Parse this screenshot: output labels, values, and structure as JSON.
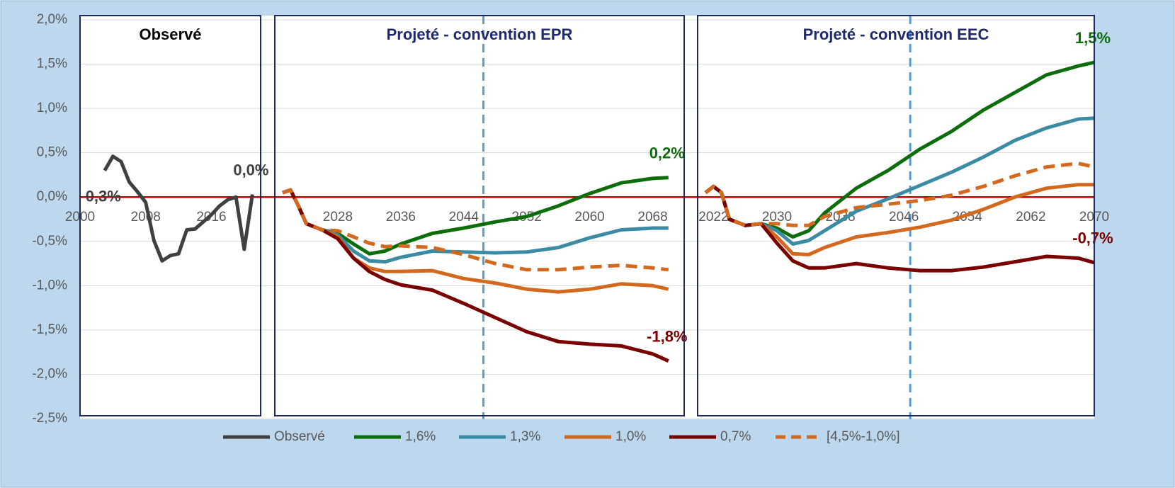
{
  "chart_data": [
    {
      "type": "line",
      "title": "Observé",
      "ylim": [
        -2.5,
        2.0
      ],
      "yticks": [
        {
          "value": 2.0,
          "label": "2,0%"
        },
        {
          "value": 1.5,
          "label": "1,5%"
        },
        {
          "value": 1.0,
          "label": "1,0%"
        },
        {
          "value": 0.5,
          "label": "0,5%"
        },
        {
          "value": 0.0,
          "label": "0,0%"
        },
        {
          "value": -0.5,
          "label": "-0,5%"
        },
        {
          "value": -1.0,
          "label": "-1,0%"
        },
        {
          "value": -1.5,
          "label": "-1,5%"
        },
        {
          "value": -2.0,
          "label": "-2,0%"
        },
        {
          "value": -2.5,
          "label": "-2,5%"
        }
      ],
      "grid": true,
      "zero_line": 0,
      "xlim": [
        2000,
        2022
      ],
      "xticks": [
        2000,
        2008,
        2016
      ],
      "x": [
        2003,
        2004,
        2005,
        2006,
        2007,
        2008,
        2009,
        2010,
        2011,
        2012,
        2013,
        2014,
        2015,
        2016,
        2017,
        2018,
        2019,
        2020,
        2021
      ],
      "series": [
        {
          "name": "Observé",
          "color": "#404040",
          "start_label": "0,3%",
          "end_label": "0,0%",
          "values": [
            0.3,
            0.46,
            0.4,
            0.17,
            0.06,
            -0.06,
            -0.49,
            -0.72,
            -0.66,
            -0.64,
            -0.37,
            -0.36,
            -0.28,
            -0.2,
            -0.1,
            -0.03,
            0.0,
            -0.59,
            0.03
          ]
        }
      ]
    },
    {
      "type": "line",
      "title": "Projeté - convention EPR",
      "ylim": [
        -2.5,
        2.0
      ],
      "xlim": [
        2020,
        2072
      ],
      "xticks": [
        2028,
        2036,
        2044,
        2052,
        2060,
        2068
      ],
      "vline": 2046.5,
      "x": [
        2021,
        2022,
        2023,
        2024,
        2026,
        2028,
        2030,
        2032,
        2034,
        2036,
        2040,
        2044,
        2048,
        2052,
        2056,
        2060,
        2064,
        2068,
        2070
      ],
      "series": [
        {
          "name": "1,6%",
          "color": "#0b6e0b",
          "end_label": "0,2%",
          "values": [
            0.05,
            0.08,
            -0.1,
            -0.3,
            -0.37,
            -0.41,
            -0.53,
            -0.64,
            -0.61,
            -0.53,
            -0.41,
            -0.35,
            -0.28,
            -0.22,
            -0.1,
            0.04,
            0.16,
            0.21,
            0.22
          ]
        },
        {
          "name": "1,3%",
          "color": "#3a8ba3",
          "values": [
            0.05,
            0.08,
            -0.1,
            -0.3,
            -0.37,
            -0.43,
            -0.61,
            -0.72,
            -0.73,
            -0.68,
            -0.61,
            -0.62,
            -0.63,
            -0.62,
            -0.57,
            -0.46,
            -0.37,
            -0.35,
            -0.35
          ]
        },
        {
          "name": "1,0%",
          "color": "#d2691e",
          "values": [
            0.05,
            0.08,
            -0.1,
            -0.3,
            -0.37,
            -0.45,
            -0.69,
            -0.8,
            -0.84,
            -0.84,
            -0.83,
            -0.92,
            -0.97,
            -1.04,
            -1.07,
            -1.04,
            -0.98,
            -1.0,
            -1.04
          ]
        },
        {
          "name": "0,7%",
          "color": "#7a0000",
          "end_label": "-1,8%",
          "values": [
            0.05,
            0.08,
            -0.1,
            -0.3,
            -0.37,
            -0.47,
            -0.69,
            -0.84,
            -0.93,
            -0.99,
            -1.05,
            -1.2,
            -1.36,
            -1.52,
            -1.63,
            -1.66,
            -1.68,
            -1.77,
            -1.85
          ]
        },
        {
          "name": "[4,5%-1,0%]",
          "color": "#d2691e",
          "dashed": true,
          "values": [
            0.05,
            0.08,
            -0.1,
            -0.3,
            -0.37,
            -0.38,
            -0.45,
            -0.52,
            -0.56,
            -0.55,
            -0.57,
            -0.65,
            -0.75,
            -0.82,
            -0.82,
            -0.79,
            -0.77,
            -0.8,
            -0.82
          ]
        }
      ]
    },
    {
      "type": "line",
      "title": "Projeté - convention EEC",
      "ylim": [
        -2.5,
        2.0
      ],
      "xlim": [
        2020,
        2070
      ],
      "xticks": [
        2022,
        2030,
        2038,
        2046,
        2054,
        2062,
        2070
      ],
      "vline": 2046.8,
      "x": [
        2021,
        2022,
        2023,
        2024,
        2026,
        2028,
        2030,
        2032,
        2034,
        2036,
        2040,
        2044,
        2048,
        2052,
        2056,
        2060,
        2064,
        2068,
        2070
      ],
      "series": [
        {
          "name": "1,6%",
          "color": "#0b6e0b",
          "end_label": "1,5%",
          "values": [
            0.05,
            0.12,
            0.05,
            -0.25,
            -0.32,
            -0.3,
            -0.35,
            -0.45,
            -0.38,
            -0.18,
            0.1,
            0.3,
            0.54,
            0.74,
            0.98,
            1.18,
            1.38,
            1.48,
            1.52
          ]
        },
        {
          "name": "1,3%",
          "color": "#3a8ba3",
          "values": [
            0.05,
            0.12,
            0.05,
            -0.25,
            -0.32,
            -0.3,
            -0.38,
            -0.53,
            -0.49,
            -0.38,
            -0.16,
            -0.02,
            0.13,
            0.28,
            0.45,
            0.64,
            0.78,
            0.88,
            0.89
          ]
        },
        {
          "name": "1,0%",
          "color": "#d2691e",
          "values": [
            0.05,
            0.12,
            0.05,
            -0.25,
            -0.32,
            -0.3,
            -0.45,
            -0.64,
            -0.65,
            -0.57,
            -0.45,
            -0.4,
            -0.34,
            -0.26,
            -0.14,
            0.0,
            0.1,
            0.14,
            0.14
          ]
        },
        {
          "name": "0,7%",
          "color": "#7a0000",
          "end_label": "-0,7%",
          "values": [
            0.05,
            0.12,
            0.05,
            -0.25,
            -0.32,
            -0.3,
            -0.52,
            -0.72,
            -0.8,
            -0.8,
            -0.75,
            -0.8,
            -0.83,
            -0.83,
            -0.79,
            -0.73,
            -0.67,
            -0.69,
            -0.74
          ]
        },
        {
          "name": "[4,5%-1,0%]",
          "color": "#d2691e",
          "dashed": true,
          "values": [
            0.05,
            0.12,
            0.05,
            -0.25,
            -0.32,
            -0.3,
            -0.3,
            -0.32,
            -0.32,
            -0.22,
            -0.12,
            -0.08,
            -0.04,
            0.02,
            0.12,
            0.24,
            0.34,
            0.38,
            0.34
          ]
        }
      ]
    }
  ]
}
